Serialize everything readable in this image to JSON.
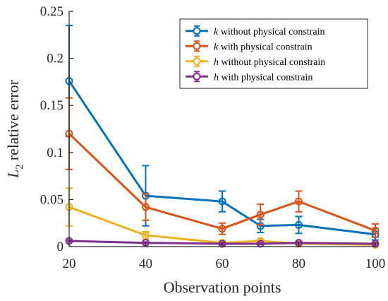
{
  "chart_data": {
    "type": "line",
    "title": "",
    "xlabel": "Observation points",
    "ylabel": {
      "symbol": "L",
      "subscript": "2",
      "text": "relative error"
    },
    "xlim": [
      20,
      100
    ],
    "ylim": [
      0,
      0.25
    ],
    "xticks": [
      20,
      40,
      60,
      80,
      100
    ],
    "yticks": [
      0,
      0.05,
      0.1,
      0.15,
      0.2,
      0.25
    ],
    "ytick_labels": [
      "0",
      "0.05",
      "0.1",
      "0.15",
      "0.2",
      "0.25"
    ],
    "grid": false,
    "legend_position": "top-right",
    "x": [
      20,
      40,
      60,
      70,
      80,
      100
    ],
    "series": [
      {
        "name": "k without physical constrain",
        "symbol": "k",
        "label": "without physical constrain",
        "color": "#0072BD",
        "values": [
          0.176,
          0.054,
          0.048,
          0.022,
          0.023,
          0.013
        ],
        "errors": [
          0.059,
          0.032,
          0.011,
          0.007,
          0.009,
          0.006
        ]
      },
      {
        "name": "k with physical constrain",
        "symbol": "k",
        "label": "with physical constrain",
        "color": "#D95319",
        "values": [
          0.12,
          0.042,
          0.019,
          0.034,
          0.048,
          0.017
        ],
        "errors": [
          0.038,
          0.014,
          0.006,
          0.011,
          0.011,
          0.007
        ]
      },
      {
        "name": "h without physical constrain",
        "symbol": "h",
        "label": "without physical constrain",
        "color": "#EDB120",
        "values": [
          0.042,
          0.012,
          0.004,
          0.006,
          0.003,
          0.002
        ],
        "errors": [
          0.02,
          0.004,
          0.002,
          0.002,
          0.001,
          0.001
        ]
      },
      {
        "name": "h with physical constrain",
        "symbol": "h",
        "label": "with physical constrain",
        "color": "#7E2F8E",
        "values": [
          0.006,
          0.004,
          0.003,
          0.003,
          0.004,
          0.003
        ],
        "errors": [
          0.001,
          0.001,
          0.001,
          0.001,
          0.001,
          0.001
        ]
      }
    ]
  }
}
